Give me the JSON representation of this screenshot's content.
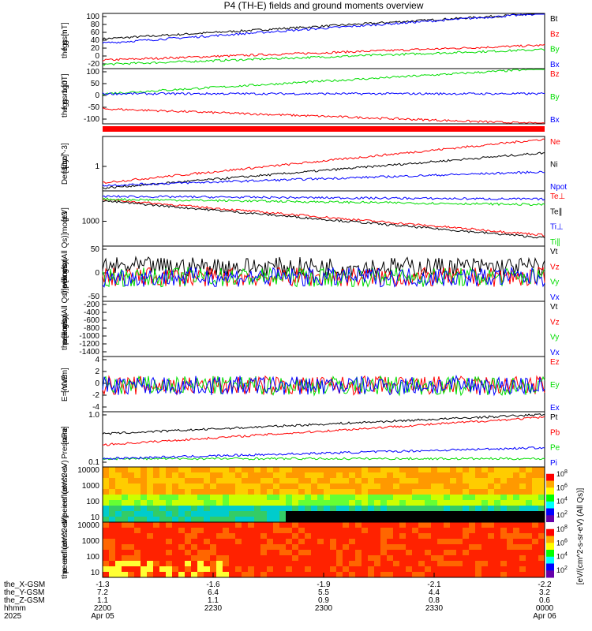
{
  "title": "P4 (TH-E) fields and ground moments overview",
  "colors": {
    "black": "#000000",
    "red": "#ff0000",
    "green": "#00dd00",
    "blue": "#0000ff"
  },
  "chart_data": [
    {
      "type": "line",
      "ylabel": [
        "the",
        "fgs",
        "gsm",
        "[nT]"
      ],
      "yticks": [
        "100",
        "80",
        "60",
        "40",
        "20",
        "0",
        "-20"
      ],
      "ylim": [
        -30,
        100
      ],
      "series": [
        {
          "name": "Bt",
          "color": "#000000",
          "start": 40,
          "end": 100
        },
        {
          "name": "Bz",
          "color": "#ff0000",
          "start": -10,
          "end": 25
        },
        {
          "name": "By",
          "color": "#00dd00",
          "start": -20,
          "end": 15
        },
        {
          "name": "Bx",
          "color": "#0000ff",
          "start": 30,
          "end": 100
        }
      ]
    },
    {
      "type": "line",
      "ylabel": [
        "the",
        "fgs",
        "gsm",
        "-1g0",
        "[nT]"
      ],
      "yticks": [
        "100",
        "50",
        "0",
        "-50",
        "-100"
      ],
      "ylim": [
        -120,
        100
      ],
      "series": [
        {
          "name": "Bz",
          "color": "#ff0000",
          "start": -60,
          "end": -120
        },
        {
          "name": "By",
          "color": "#00dd00",
          "start": 0,
          "end": 100
        },
        {
          "name": "Bx",
          "color": "#0000ff",
          "start": 0,
          "end": 0
        }
      ]
    },
    {
      "type": "line",
      "ylabel": [
        "Density",
        "[1/cc]",
        "[cm^-3]"
      ],
      "yticks": [
        "1"
      ],
      "ylim": [
        0,
        1
      ],
      "series": [
        {
          "name": "Ne",
          "color": "#ff0000",
          "start": 0.15,
          "end": 0.95
        },
        {
          "name": "Ni",
          "color": "#000000",
          "start": 0.05,
          "end": 0.7
        },
        {
          "name": "Npot",
          "color": "#0000ff",
          "start": 0.1,
          "end": 0.35
        }
      ]
    },
    {
      "type": "line",
      "ylabel": [
        "moqt3",
        "[eV]"
      ],
      "yticks": [
        "1000"
      ],
      "ylim": [
        0,
        1
      ],
      "series": [
        {
          "name": "Te⊥",
          "color": "#ff0000",
          "start": 0.85,
          "end": 0.2
        },
        {
          "name": "Te∥",
          "color": "#000000",
          "start": 0.82,
          "end": 0.15
        },
        {
          "name": "Ti⊥",
          "color": "#0000ff",
          "start": 0.9,
          "end": 0.85
        },
        {
          "name": "Ti∥",
          "color": "#00dd00",
          "start": 0.85,
          "end": 0.75
        }
      ]
    },
    {
      "type": "line",
      "ylabel": [
        "the",
        "peir",
        "velocity",
        "gsm",
        "[km/s (All Qs)]"
      ],
      "yticks": [
        "50",
        "0",
        "-50"
      ],
      "ylim": [
        -70,
        90
      ],
      "series": [
        {
          "name": "Vt",
          "color": "#000000",
          "start": 30,
          "end": 30
        },
        {
          "name": "Vz",
          "color": "#ff0000",
          "start": 0,
          "end": 0
        },
        {
          "name": "Vy",
          "color": "#00dd00",
          "start": 0,
          "end": 0
        },
        {
          "name": "Vx",
          "color": "#0000ff",
          "start": 0,
          "end": 0
        }
      ]
    },
    {
      "type": "line",
      "ylabel": [
        "the",
        "peer",
        "velocity",
        "gsm",
        "[km/s (All Qs)]"
      ],
      "yticks": [
        "-200",
        "-400",
        "-600",
        "-800",
        "-1000",
        "-1200",
        "-1400"
      ],
      "ylim": [
        -1450,
        0
      ],
      "series": [
        {
          "name": "Vt",
          "color": "#000000"
        },
        {
          "name": "Vz",
          "color": "#ff0000"
        },
        {
          "name": "Vy",
          "color": "#00dd00"
        },
        {
          "name": "Vx",
          "color": "#0000ff"
        }
      ]
    },
    {
      "type": "line",
      "ylabel": [
        "E=-VxB",
        "[mV/m]"
      ],
      "yticks": [
        "4",
        "2",
        "0",
        "-2",
        "-4"
      ],
      "ylim": [
        -4.5,
        5
      ],
      "series": [
        {
          "name": "Ez",
          "color": "#ff0000",
          "start": 0,
          "end": 0
        },
        {
          "name": "Ey",
          "color": "#00dd00",
          "start": 0,
          "end": 0
        },
        {
          "name": "Ex",
          "color": "#0000ff",
          "start": 0,
          "end": 0
        }
      ]
    },
    {
      "type": "line",
      "ylabel": [
        "Pressure",
        "[nPa]"
      ],
      "yticks": [
        "1.0",
        "0.1"
      ],
      "ylim": [
        0,
        1
      ],
      "series": [
        {
          "name": "Pt",
          "color": "#000000",
          "start": 0.6,
          "end": 0.95
        },
        {
          "name": "Pb",
          "color": "#ff0000",
          "start": 0.4,
          "end": 0.9
        },
        {
          "name": "Pe",
          "color": "#00dd00",
          "start": 0.15,
          "end": 0.15
        },
        {
          "name": "Pi",
          "color": "#0000ff",
          "start": 0.15,
          "end": 0.35
        }
      ]
    },
    {
      "type": "heatmap",
      "ylabel": [
        "the",
        "peir",
        "en",
        "eflux",
        "eV",
        "(cm^2-s-",
        "sr-eV)"
      ],
      "yticks": [
        "10000",
        "1000",
        "100",
        "10"
      ],
      "colorbar_ticks": [
        "10^8",
        "10^6",
        "10^4",
        "10^2"
      ]
    },
    {
      "type": "heatmap",
      "ylabel": [
        "the",
        "peer",
        "en",
        "eflux",
        "eV",
        "(cm^2-s-",
        "sr-eV)"
      ],
      "yticks": [
        "10000",
        "1000",
        "100",
        "10"
      ],
      "colorbar_ticks": [
        "10^8",
        "10^6",
        "10^4",
        "10^2"
      ],
      "colorbar_label": "[eV/(cm^2-s-sr-eV) (All Qs)]"
    }
  ],
  "xaxis": {
    "row_labels": [
      "the_X-GSM",
      "the_Y-GSM",
      "the_Z-GSM",
      "hhmm",
      "2025"
    ],
    "ticks": [
      {
        "x": "-1.3",
        "y": "7.2",
        "z": "1.1",
        "t": "2200",
        "d": "Apr 05"
      },
      {
        "x": "-1.6",
        "y": "6.4",
        "z": "1.1",
        "t": "2230",
        "d": ""
      },
      {
        "x": "-1.9",
        "y": "5.5",
        "z": "0.9",
        "t": "2300",
        "d": ""
      },
      {
        "x": "-2.1",
        "y": "4.4",
        "z": "0.8",
        "t": "2330",
        "d": ""
      },
      {
        "x": "-2.2",
        "y": "3.2",
        "z": "0.6",
        "t": "0000",
        "d": "Apr 06"
      }
    ]
  }
}
